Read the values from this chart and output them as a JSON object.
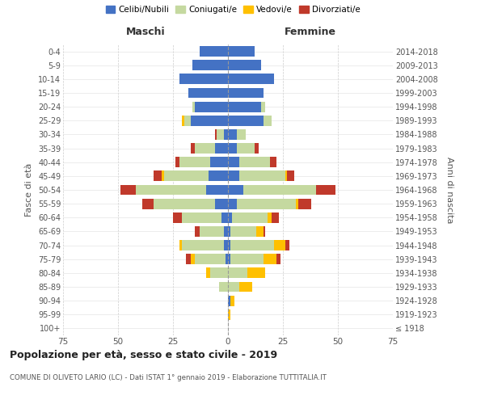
{
  "age_groups": [
    "100+",
    "95-99",
    "90-94",
    "85-89",
    "80-84",
    "75-79",
    "70-74",
    "65-69",
    "60-64",
    "55-59",
    "50-54",
    "45-49",
    "40-44",
    "35-39",
    "30-34",
    "25-29",
    "20-24",
    "15-19",
    "10-14",
    "5-9",
    "0-4"
  ],
  "birth_years": [
    "≤ 1918",
    "1919-1923",
    "1924-1928",
    "1929-1933",
    "1934-1938",
    "1939-1943",
    "1944-1948",
    "1949-1953",
    "1954-1958",
    "1959-1963",
    "1964-1968",
    "1969-1973",
    "1974-1978",
    "1979-1983",
    "1984-1988",
    "1989-1993",
    "1994-1998",
    "1999-2003",
    "2004-2008",
    "2009-2013",
    "2014-2018"
  ],
  "male_celibi": [
    0,
    0,
    0,
    0,
    0,
    1,
    2,
    2,
    3,
    6,
    10,
    9,
    8,
    6,
    2,
    17,
    15,
    18,
    22,
    16,
    13
  ],
  "male_coniugati": [
    0,
    0,
    0,
    4,
    8,
    14,
    19,
    11,
    18,
    28,
    32,
    20,
    14,
    9,
    3,
    3,
    1,
    0,
    0,
    0,
    0
  ],
  "male_vedovi": [
    0,
    0,
    0,
    0,
    2,
    2,
    1,
    0,
    0,
    0,
    0,
    1,
    0,
    0,
    0,
    1,
    0,
    0,
    0,
    0,
    0
  ],
  "male_divorziati": [
    0,
    0,
    0,
    0,
    0,
    2,
    0,
    2,
    4,
    5,
    7,
    4,
    2,
    2,
    1,
    0,
    0,
    0,
    0,
    0,
    0
  ],
  "female_nubili": [
    0,
    0,
    1,
    0,
    0,
    1,
    1,
    1,
    2,
    4,
    7,
    5,
    5,
    4,
    4,
    16,
    15,
    16,
    21,
    15,
    12
  ],
  "female_coniugate": [
    0,
    0,
    0,
    5,
    9,
    15,
    20,
    12,
    16,
    27,
    33,
    21,
    14,
    8,
    4,
    4,
    2,
    0,
    0,
    0,
    0
  ],
  "female_vedove": [
    0,
    1,
    2,
    6,
    8,
    6,
    5,
    3,
    2,
    1,
    0,
    1,
    0,
    0,
    0,
    0,
    0,
    0,
    0,
    0,
    0
  ],
  "female_divorziate": [
    0,
    0,
    0,
    0,
    0,
    2,
    2,
    1,
    3,
    6,
    9,
    3,
    3,
    2,
    0,
    0,
    0,
    0,
    0,
    0,
    0
  ],
  "color_celibi": "#4472C4",
  "color_coniugati": "#C5D9A0",
  "color_vedovi": "#FFC000",
  "color_divorziati": "#C0392B",
  "title": "Popolazione per età, sesso e stato civile - 2019",
  "subtitle": "COMUNE DI OLIVETO LARIO (LC) - Dati ISTAT 1° gennaio 2019 - Elaborazione TUTTITALIA.IT",
  "label_maschi": "Maschi",
  "label_femmine": "Femmine",
  "ylabel_left": "Fasce di età",
  "ylabel_right": "Anni di nascita",
  "legend_labels": [
    "Celibi/Nubili",
    "Coniugati/e",
    "Vedovi/e",
    "Divorziati/e"
  ],
  "xlim": 75,
  "bg_color": "#FFFFFF"
}
